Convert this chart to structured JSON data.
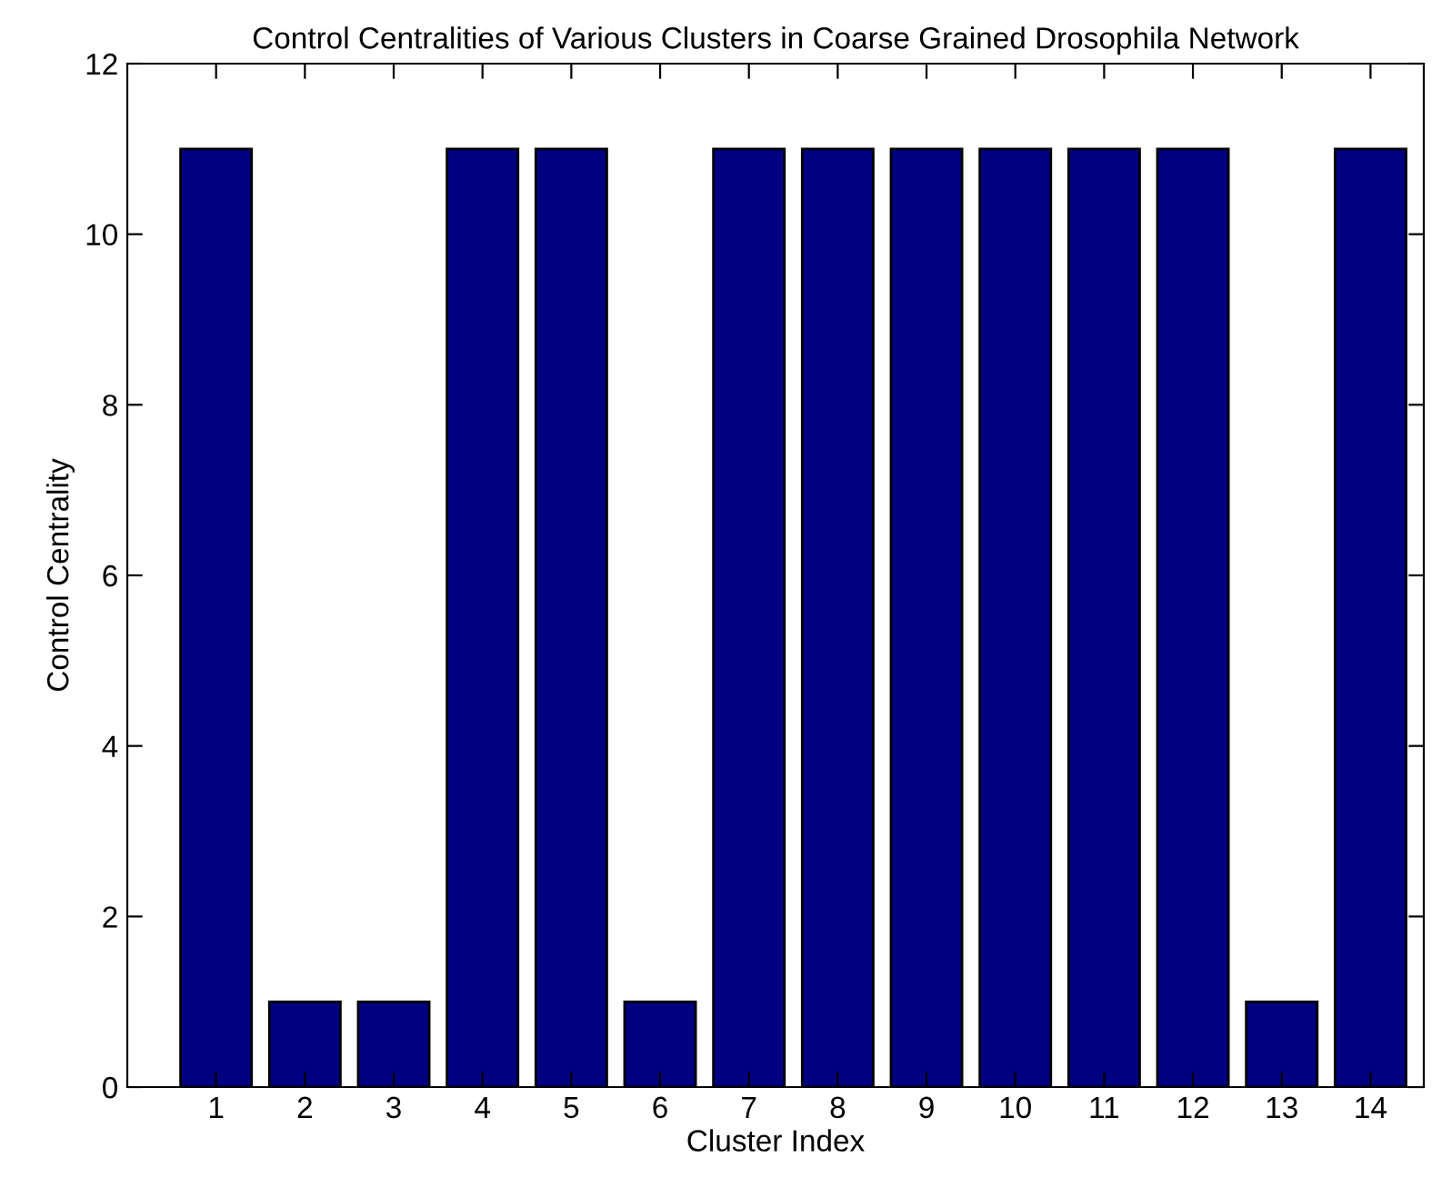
{
  "chart_data": {
    "type": "bar",
    "title": "Control Centralities of Various Clusters in Coarse Grained Drosophila Network",
    "xlabel": "Cluster Index",
    "ylabel": "Control Centrality",
    "x": [
      1,
      2,
      3,
      4,
      5,
      6,
      7,
      8,
      9,
      10,
      11,
      12,
      13,
      14
    ],
    "values": [
      11,
      1,
      1,
      11,
      11,
      1,
      11,
      11,
      11,
      11,
      11,
      11,
      1,
      11
    ],
    "color": "#000080",
    "xlim": [
      0,
      14.6
    ],
    "xticks": [
      1,
      2,
      3,
      4,
      5,
      6,
      7,
      8,
      9,
      10,
      11,
      12,
      13,
      14
    ],
    "ylim": [
      0,
      12
    ],
    "yticks": [
      0,
      2,
      4,
      6,
      8,
      10,
      12
    ],
    "grid": false,
    "legend": false
  }
}
